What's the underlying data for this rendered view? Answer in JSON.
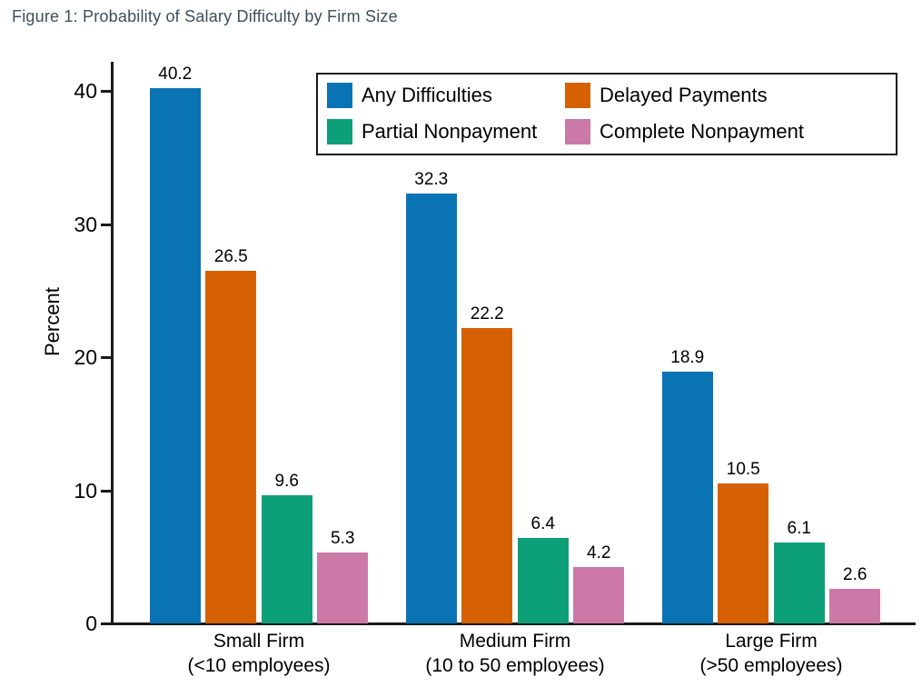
{
  "figure_title": "Figure 1: Probability of Salary Difficulty by Firm Size",
  "chart_data": {
    "type": "bar",
    "title": "Figure 1: Probability of Salary Difficulty by Firm Size",
    "ylabel": "Percent",
    "xlabel": "",
    "ylim": [
      0,
      42
    ],
    "yticks": [
      0,
      10,
      20,
      30,
      40
    ],
    "grid": false,
    "bar_value_labels": true,
    "legend_position": "top-center-inside",
    "categories": [
      [
        "Small Firm",
        "(<10 employees)"
      ],
      [
        "Medium Firm",
        "(10 to 50 employees)"
      ],
      [
        "Large Firm",
        "(>50 employees)"
      ]
    ],
    "series": [
      {
        "name": "Any Difficulties",
        "color": "#0a73b4",
        "values": [
          40.2,
          32.3,
          18.9
        ]
      },
      {
        "name": "Delayed Payments",
        "color": "#d66104",
        "values": [
          26.5,
          22.2,
          10.5
        ]
      },
      {
        "name": "Partial Nonpayment",
        "color": "#0da078",
        "values": [
          9.6,
          6.4,
          6.1
        ]
      },
      {
        "name": "Complete Nonpayment",
        "color": "#cb79a7",
        "values": [
          5.3,
          4.2,
          2.6
        ]
      }
    ]
  }
}
